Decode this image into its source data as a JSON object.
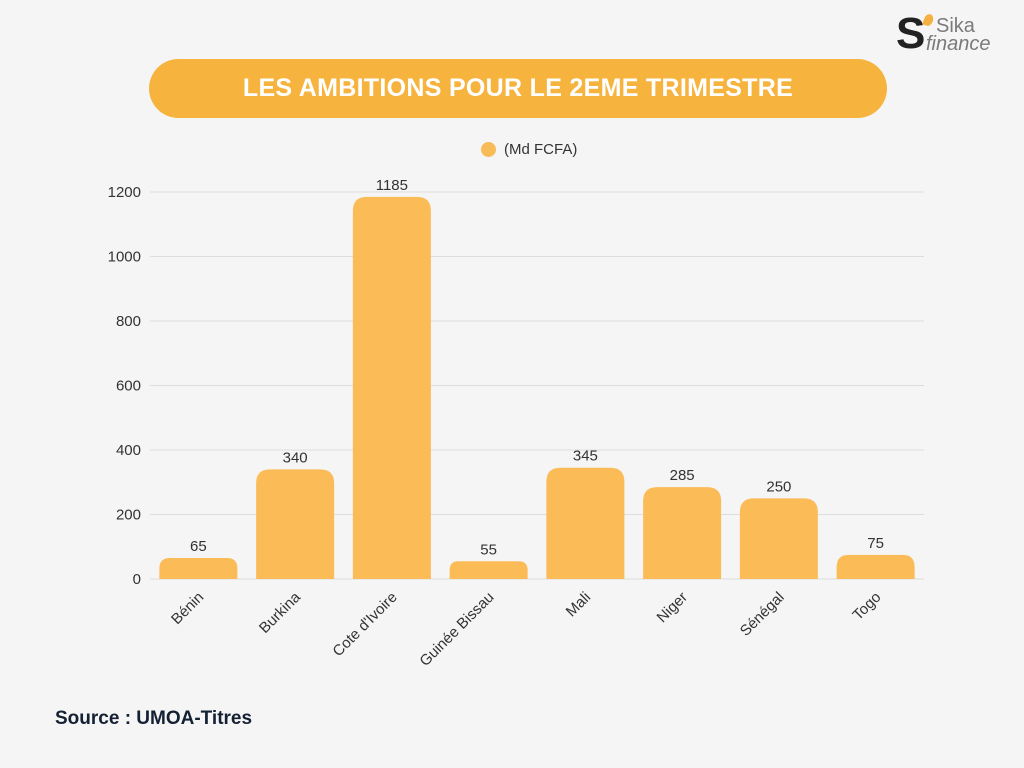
{
  "logo": {
    "mark": "S",
    "line1": "Sika",
    "line2": "finance"
  },
  "source": "Source : UMOA-Titres",
  "colors": {
    "bar": "#fbbb56",
    "accent": "#f6b43f",
    "grid": "#dddddd",
    "background": "#f5f5f5"
  },
  "chart_data": {
    "type": "bar",
    "title": "LES AMBITIONS POUR LE 2EME TRIMESTRE",
    "legend": [
      {
        "name": "(Md FCFA)",
        "color": "#f7bb58"
      }
    ],
    "legend_position": "top-center",
    "categories": [
      "Bénin",
      "Burkina",
      "Cote d'Ivoire",
      "Guinée Bissau",
      "Mali",
      "Niger",
      "Sénégal",
      "Togo"
    ],
    "series": [
      {
        "name": "(Md FCFA)",
        "values": [
          65,
          340,
          1185,
          55,
          345,
          285,
          250,
          75
        ]
      }
    ],
    "data_labels": [
      "65",
      "340",
      "1185",
      "55",
      "345",
      "285",
      "250",
      "75"
    ],
    "yticks": [
      0,
      200,
      400,
      600,
      800,
      1000,
      1200
    ],
    "ylim": [
      0,
      1200
    ],
    "xlabel": "",
    "ylabel": "",
    "grid": true
  }
}
